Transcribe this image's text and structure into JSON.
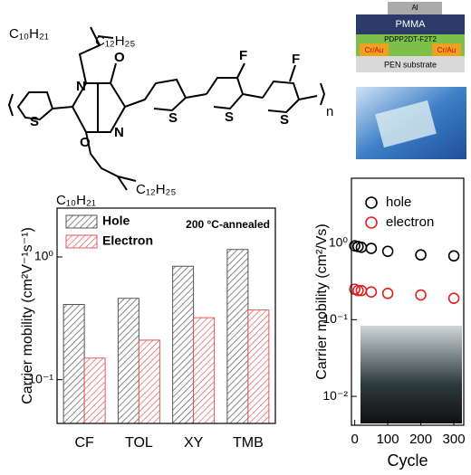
{
  "structure": {
    "labels": [
      "C₁₀H₂₁",
      "C₁₂H₂₅",
      "N",
      "O",
      "S",
      "S",
      "S",
      "F",
      "S",
      "F",
      "O",
      "N",
      "C₁₀H₂₁",
      "C₁₂H₂₅",
      "n"
    ]
  },
  "device": {
    "layers": [
      "Al",
      "PMMA",
      "PDPP2DT-F2T2",
      "Cr/Au",
      "Cr/Au",
      "PEN substrate"
    ]
  },
  "chart_data": [
    {
      "type": "bar",
      "ylabel": "Carrier mobility (cm²V⁻¹s⁻¹)",
      "annotation": "200 °C-annealed",
      "categories": [
        "CF",
        "TOL",
        "XY",
        "TMB"
      ],
      "series": [
        {
          "name": "Hole",
          "color": "#555555",
          "values": [
            0.41,
            0.46,
            0.84,
            1.15
          ]
        },
        {
          "name": "Electron",
          "color": "#e05a5a",
          "values": [
            0.15,
            0.21,
            0.32,
            0.37
          ]
        }
      ],
      "ylim": [
        0.044,
        2.5
      ],
      "log_y": true,
      "yticks": [
        {
          "value": 0.1,
          "label": "10⁻¹"
        },
        {
          "value": 1,
          "label": "10⁰"
        }
      ]
    },
    {
      "type": "scatter",
      "xlabel": "Cycle",
      "ylabel": "Carrier mobility (cm²/Vs)",
      "x": [
        0,
        10,
        20,
        50,
        100,
        200,
        300
      ],
      "series": [
        {
          "name": "hole",
          "color": "#000000",
          "values": [
            0.92,
            0.9,
            0.88,
            0.85,
            0.78,
            0.7,
            0.68
          ]
        },
        {
          "name": "electron",
          "color": "#e02020",
          "values": [
            0.25,
            0.24,
            0.24,
            0.23,
            0.22,
            0.21,
            0.19
          ]
        }
      ],
      "xlim": [
        -10,
        330
      ],
      "xticks": [
        0,
        100,
        200,
        300
      ],
      "ylim": [
        0.0042,
        7
      ],
      "log_y": true,
      "yticks": [
        {
          "value": 0.01,
          "label": "10⁻²"
        },
        {
          "value": 0.1,
          "label": "10⁻¹"
        },
        {
          "value": 1,
          "label": "10⁰"
        }
      ]
    }
  ]
}
